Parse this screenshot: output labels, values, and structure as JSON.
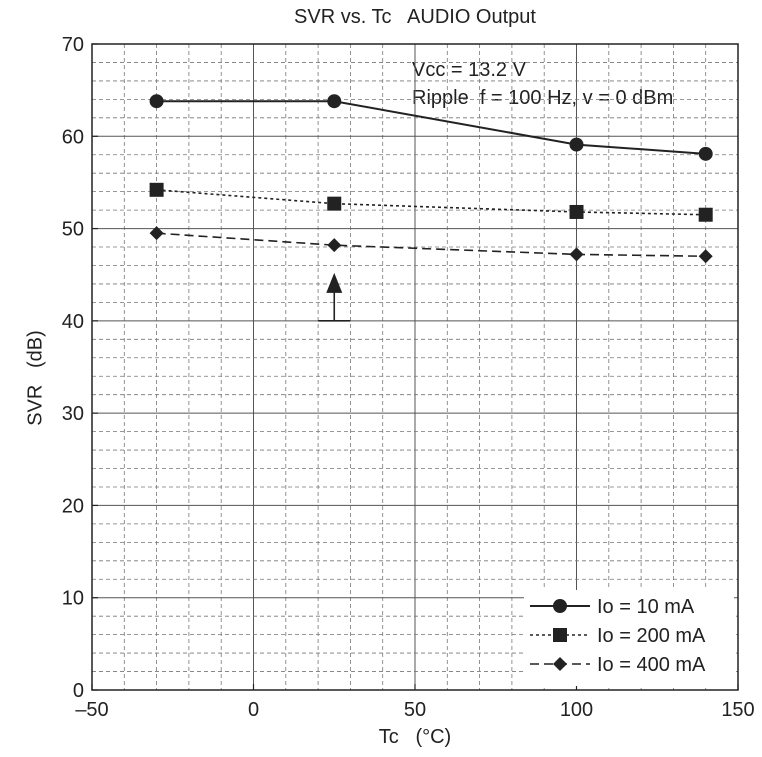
{
  "chart_data": {
    "type": "line",
    "title": "SVR vs. Tc   AUDIO Output",
    "xlabel": "Tc   (°C)",
    "ylabel": "SVR   (dB)",
    "xlim": [
      -50,
      150
    ],
    "ylim": [
      0,
      70
    ],
    "x_ticks": [
      -50,
      0,
      50,
      100,
      150
    ],
    "x_tick_labels": [
      "–50",
      "0",
      "50",
      "100",
      "150"
    ],
    "y_ticks": [
      0,
      10,
      20,
      30,
      40,
      50,
      60,
      70
    ],
    "y_tick_labels": [
      "0",
      "10",
      "20",
      "30",
      "40",
      "50",
      "60",
      "70"
    ],
    "grid": true,
    "annotations": [
      "Vcc = 13.2 V",
      "Ripple  f = 100 Hz, v = 0 dBm"
    ],
    "legend_position": "bottom-right",
    "series": [
      {
        "name": "Io = 10 mA",
        "marker": "circle",
        "linestyle": "solid",
        "x": [
          -30,
          25,
          100,
          140
        ],
        "y": [
          63.8,
          63.8,
          59.1,
          58.1
        ]
      },
      {
        "name": "Io = 200 mA",
        "marker": "square",
        "linestyle": "dotted",
        "x": [
          -30,
          25,
          100,
          140
        ],
        "y": [
          54.2,
          52.7,
          51.8,
          51.5
        ]
      },
      {
        "name": "Io = 400 mA",
        "marker": "diamond",
        "linestyle": "dashed",
        "x": [
          -30,
          25,
          100,
          140
        ],
        "y": [
          49.5,
          48.2,
          47.2,
          47.0
        ]
      }
    ],
    "reference_marker": {
      "x": 25,
      "y": 40,
      "shape": "arrow-up"
    }
  },
  "colors": {
    "ink": "#222222",
    "grid_major": "#555555",
    "grid_minor": "#777777"
  }
}
